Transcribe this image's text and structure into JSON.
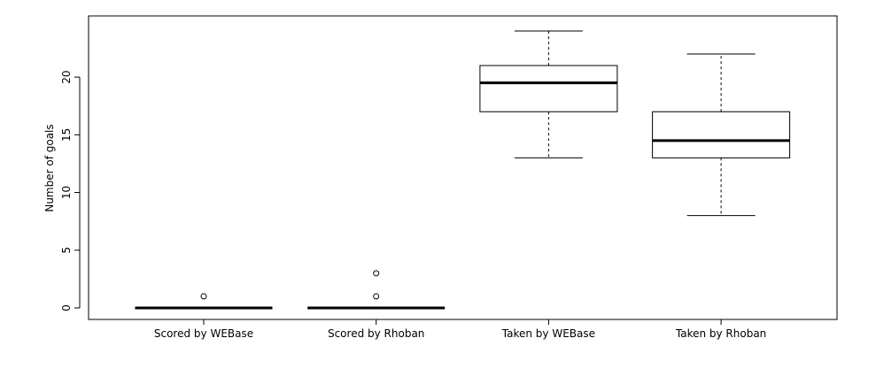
{
  "chart_data": {
    "type": "box",
    "ylabel": "Number of goals",
    "categories": [
      "Scored by WEBase",
      "Scored by Rhoban",
      "Taken by WEBase",
      "Taken by Rhoban"
    ],
    "boxes": [
      {
        "min": 0,
        "q1": 0,
        "median": 0,
        "q3": 0,
        "max": 0,
        "outliers": [
          1
        ]
      },
      {
        "min": 0,
        "q1": 0,
        "median": 0,
        "q3": 0,
        "max": 0,
        "outliers": [
          1,
          3
        ]
      },
      {
        "min": 13,
        "q1": 17,
        "median": 19.5,
        "q3": 21,
        "max": 24,
        "outliers": []
      },
      {
        "min": 8,
        "q1": 13,
        "median": 14.5,
        "q3": 17,
        "max": 22,
        "outliers": []
      }
    ],
    "ylim": [
      -1,
      25.3
    ],
    "yticks": [
      0,
      5,
      10,
      15,
      20
    ]
  }
}
